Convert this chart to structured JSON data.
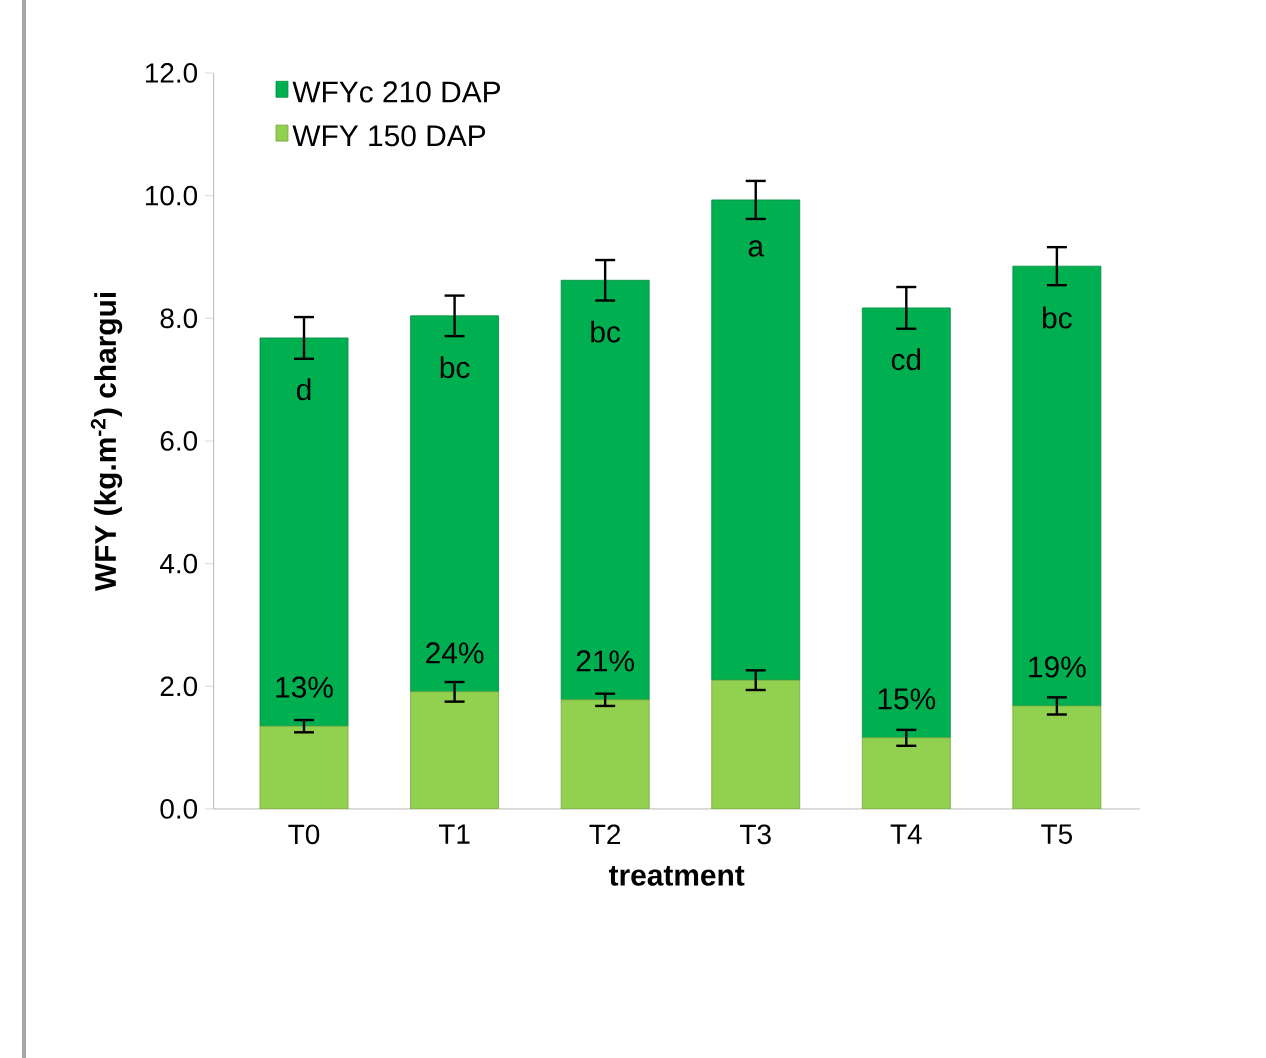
{
  "chart_data": {
    "type": "bar",
    "stacked": true,
    "xlabel": "treatment",
    "ylabel": "WFY (kg.m$^{-2}$) chargui",
    "categories": [
      "T0",
      "T1",
      "T2",
      "T3",
      "T4",
      "T5"
    ],
    "series": [
      {
        "name": "WFY 150 DAP",
        "color": "#92d050",
        "values": [
          1.35,
          1.91,
          1.78,
          2.1,
          1.16,
          1.68
        ],
        "errors": [
          0.1,
          0.16,
          0.1,
          0.16,
          0.13,
          0.14
        ]
      },
      {
        "name": "WFYc  210 DAP",
        "color": "#00b050",
        "values": [
          6.33,
          6.13,
          6.84,
          7.83,
          7.01,
          7.17
        ],
        "errors": [
          0.34,
          0.33,
          0.33,
          0.31,
          0.34,
          0.31
        ]
      }
    ],
    "annotations": [
      {
        "text": "d",
        "x": "T0",
        "y": 7.68
      },
      {
        "text": "bc",
        "x": "T1",
        "y": 8.04
      },
      {
        "text": "bc",
        "x": "T2",
        "y": 8.62
      },
      {
        "text": "a",
        "x": "T3",
        "y": 9.93
      },
      {
        "text": "cd",
        "x": "T4",
        "y": 8.17
      },
      {
        "text": "bc",
        "x": "T5",
        "y": 8.85
      },
      {
        "text": "13%",
        "x": "T0",
        "y": 1.35
      },
      {
        "text": "24%",
        "x": "T1",
        "y": 1.91
      },
      {
        "text": "21%",
        "x": "T2",
        "y": 1.78
      },
      {
        "text": "15%",
        "x": "T4",
        "y": 1.16
      },
      {
        "text": "19%",
        "x": "T5",
        "y": 1.68
      }
    ],
    "ylim": [
      0,
      12
    ],
    "yticks": [
      {
        "value": 0,
        "label": "0.0"
      },
      {
        "value": 2,
        "label": "2.0"
      },
      {
        "value": 4,
        "label": "4.0"
      },
      {
        "value": 6,
        "label": "6.0"
      },
      {
        "value": 8,
        "label": "8.0"
      },
      {
        "value": 10,
        "label": "10.0"
      },
      {
        "value": 12,
        "label": "12.0"
      }
    ],
    "grid": false,
    "legend": "top left"
  }
}
